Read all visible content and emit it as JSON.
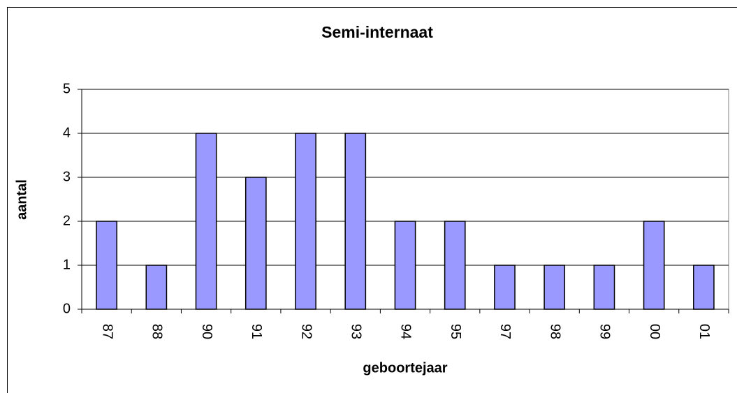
{
  "chart_data": {
    "type": "bar",
    "title": "Semi-internaat",
    "x_label": "geboortejaar",
    "y_label": "aantal",
    "categories": [
      "87",
      "88",
      "90",
      "91",
      "92",
      "93",
      "94",
      "95",
      "97",
      "98",
      "99",
      "00",
      "01"
    ],
    "values": [
      2,
      1,
      4,
      3,
      4,
      4,
      2,
      2,
      1,
      1,
      1,
      2,
      1
    ],
    "color": "#9999ff",
    "ylim": [
      0,
      5
    ],
    "yticks": [
      0,
      1,
      2,
      3,
      4,
      5
    ],
    "grid": true
  }
}
